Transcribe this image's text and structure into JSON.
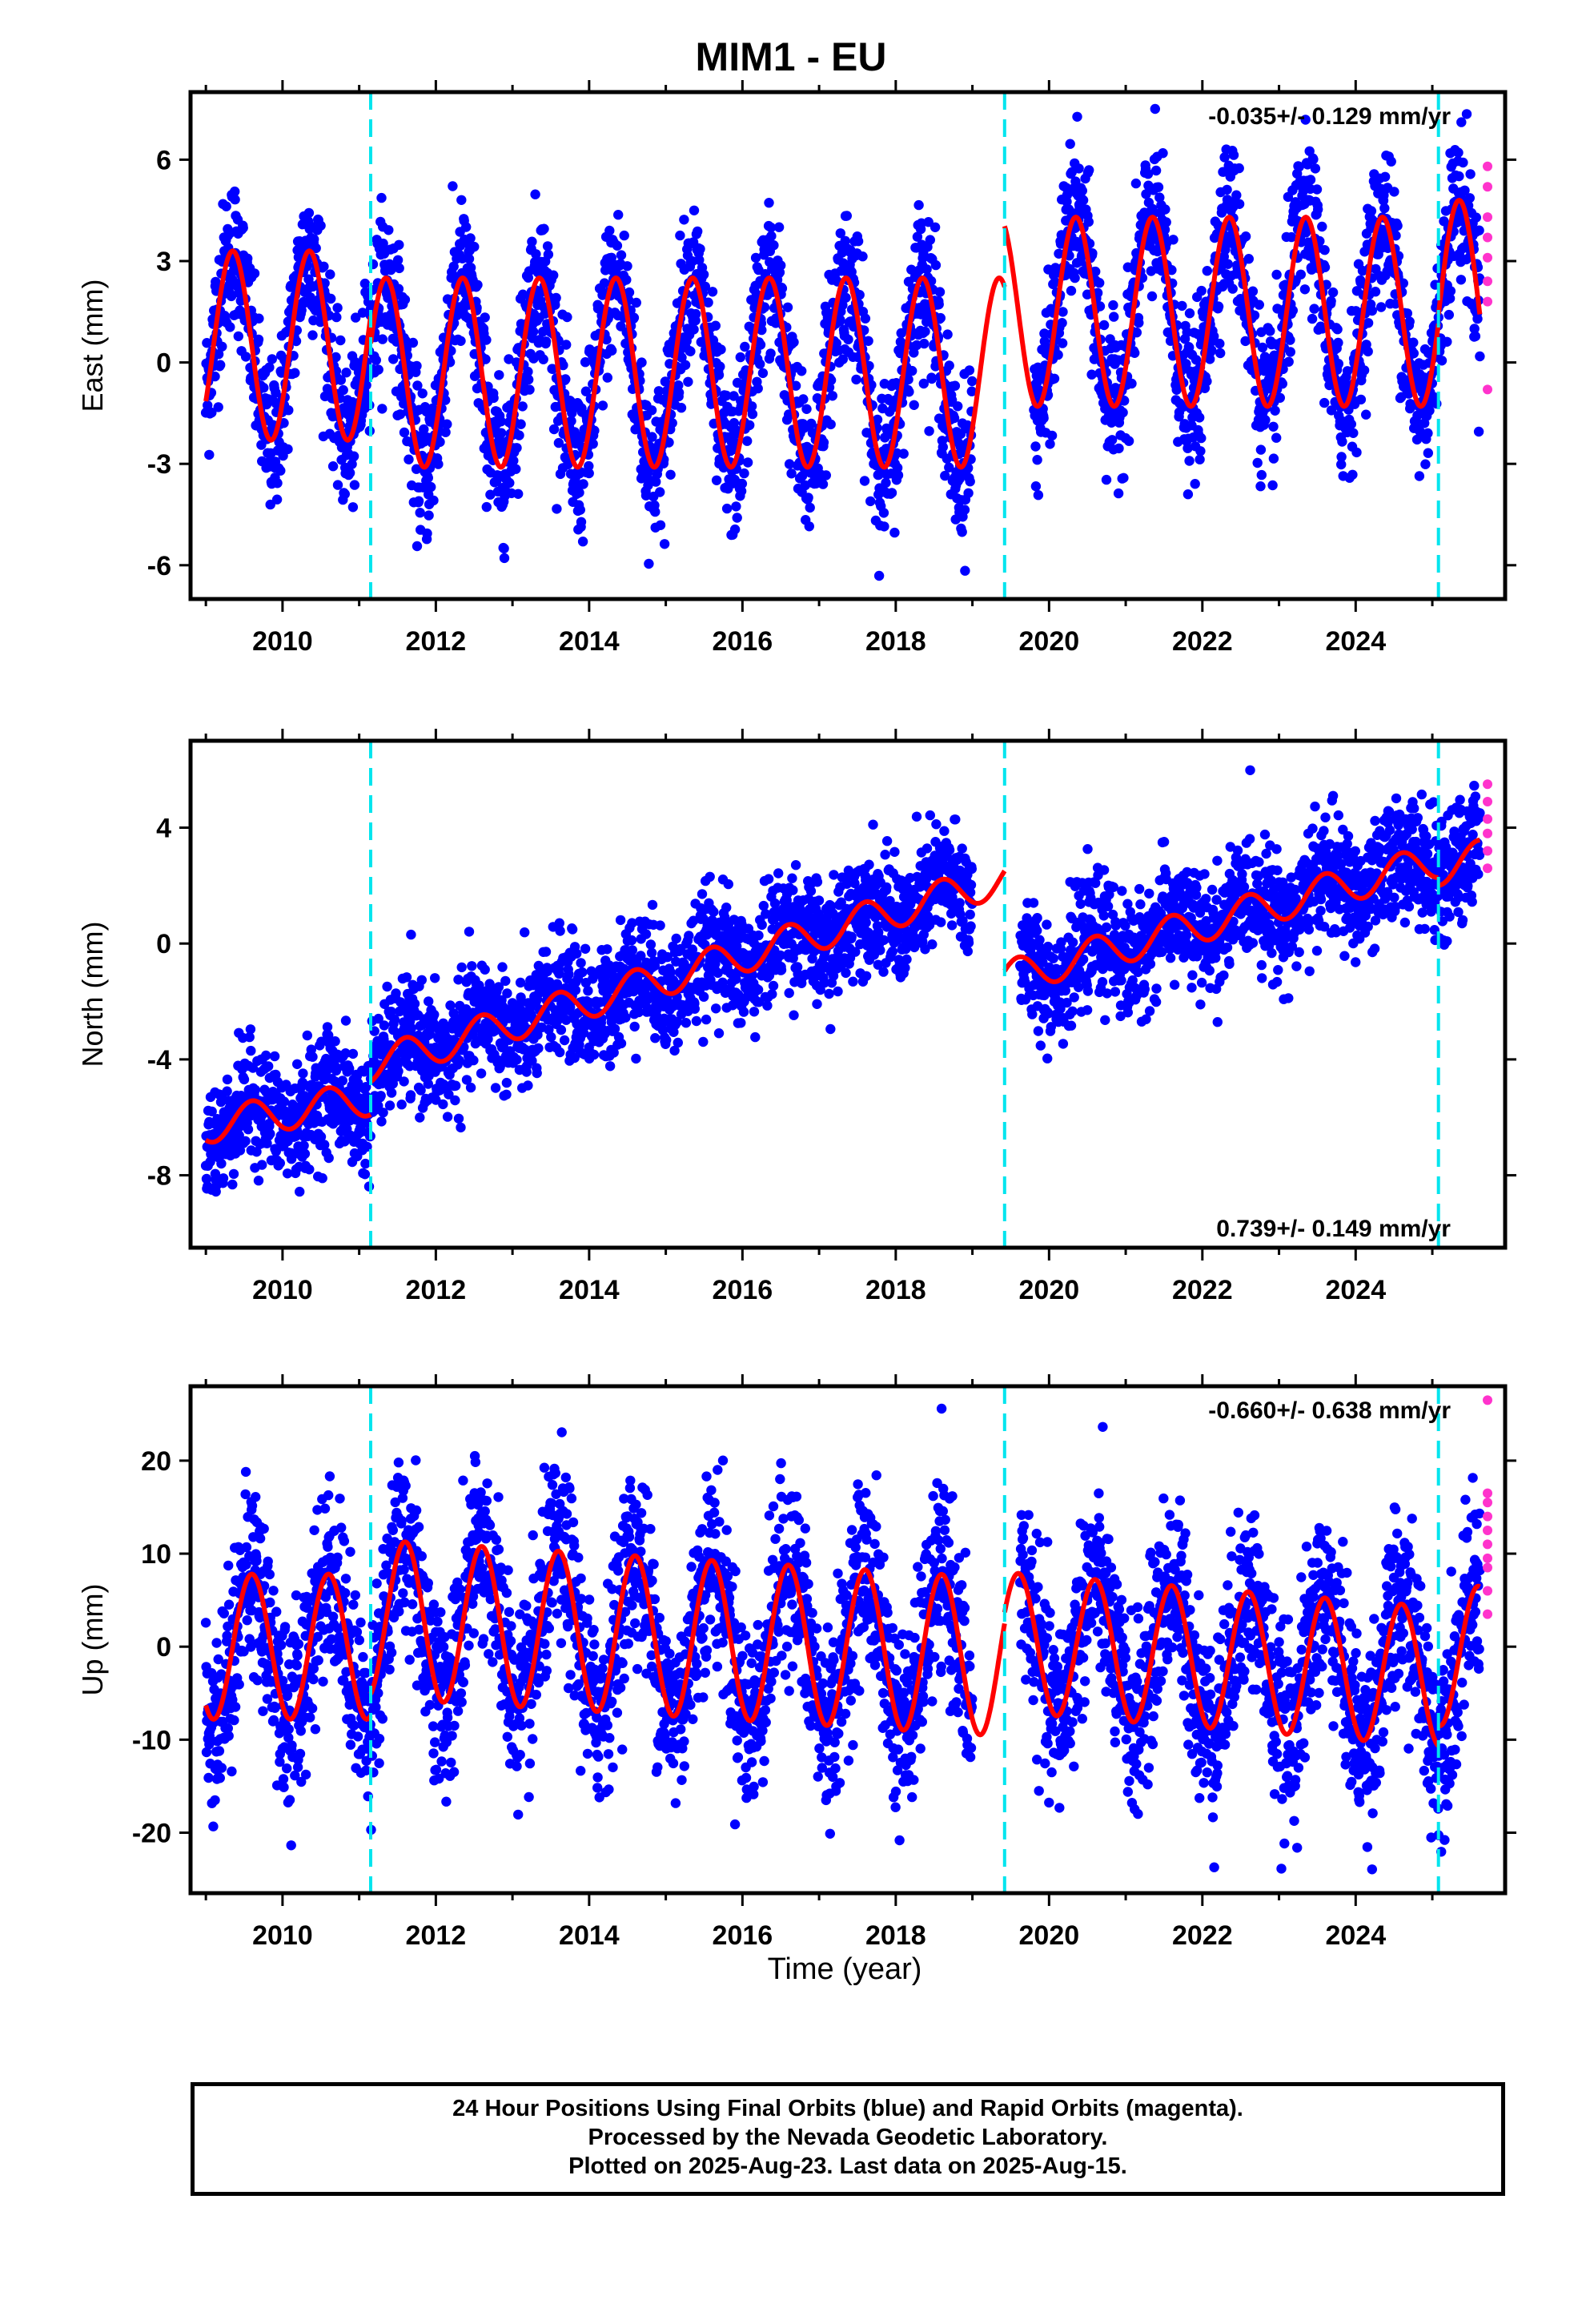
{
  "title": "MIM1 - EU",
  "xlabel": "Time (year)",
  "footer": {
    "line1": "24 Hour Positions Using Final Orbits (blue) and Rapid Orbits (magenta).",
    "line2": "Processed by the Nevada Geodetic Laboratory.",
    "line3": "Plotted on 2025-Aug-23. Last data on 2025-Aug-15."
  },
  "colors": {
    "final_orbits": "#0000ff",
    "rapid_orbits": "#ff33cc",
    "model_fit": "#ff0000",
    "offset_lines": "#00e5ee"
  },
  "chart_data": [
    {
      "type": "scatter",
      "component": "East",
      "ylabel": "East (mm)",
      "rate_label": "-0.035+/- 0.129 mm/yr",
      "rate_position": "top-right",
      "xlim": [
        2008.8,
        2025.95
      ],
      "ylim": [
        -7.0,
        8.0
      ],
      "yticks": [
        -6,
        -3,
        0,
        3,
        6
      ],
      "xticks": [
        2010,
        2012,
        2014,
        2016,
        2018,
        2020,
        2022,
        2024
      ],
      "offset_epochs": [
        2011.15,
        2019.42,
        2025.08
      ],
      "data_span": [
        2009.0,
        2025.62
      ],
      "scatter_sigma": 1.1,
      "rapid_points": [
        5.8,
        5.2,
        4.3,
        3.7,
        3.1,
        2.4,
        1.8,
        -0.8
      ],
      "model_fit": [
        {
          "from": 2009.0,
          "to": 2011.15,
          "mean": 0.5,
          "trend": 0.0,
          "amp": 2.8,
          "phase": 2009.35
        },
        {
          "from": 2011.15,
          "to": 2019.42,
          "mean": -0.3,
          "trend": 0.0,
          "amp": 2.8,
          "phase": 2009.35
        },
        {
          "from": 2019.42,
          "to": 2025.08,
          "mean": 1.5,
          "trend": 0.0,
          "amp": 2.8,
          "phase": 2009.35
        },
        {
          "from": 2025.08,
          "to": 2025.62,
          "mean": 1.8,
          "trend": 0.0,
          "amp": 3.0,
          "phase": 2009.35
        }
      ]
    },
    {
      "type": "scatter",
      "component": "North",
      "ylabel": "North (mm)",
      "rate_label": "0.739+/- 0.149 mm/yr",
      "rate_position": "bottom-right",
      "xlim": [
        2008.8,
        2025.95
      ],
      "ylim": [
        -10.5,
        7.0
      ],
      "yticks": [
        -8,
        -4,
        0,
        4
      ],
      "xticks": [
        2010,
        2012,
        2014,
        2016,
        2018,
        2020,
        2022,
        2024
      ],
      "offset_epochs": [
        2011.15,
        2019.42,
        2025.08
      ],
      "data_span": [
        2009.0,
        2025.62
      ],
      "scatter_sigma": 1.0,
      "rapid_points": [
        5.5,
        4.9,
        4.3,
        3.8,
        3.2,
        2.6
      ],
      "model_fit": [
        {
          "from": 2009.0,
          "to": 2011.15,
          "mean": -6.3,
          "trend": 0.45,
          "amp": 0.6,
          "phase": 2009.6
        },
        {
          "from": 2011.15,
          "to": 2019.42,
          "mean": -4.2,
          "trend": 0.78,
          "amp": 0.6,
          "phase": 2009.6
        },
        {
          "from": 2019.42,
          "to": 2025.08,
          "mean": -1.2,
          "trend": 0.72,
          "amp": 0.6,
          "phase": 2009.6
        },
        {
          "from": 2025.08,
          "to": 2025.62,
          "mean": 2.6,
          "trend": 0.7,
          "amp": 0.6,
          "phase": 2009.6
        }
      ]
    },
    {
      "type": "scatter",
      "component": "Up",
      "ylabel": "Up (mm)",
      "rate_label": "-0.660+/- 0.638 mm/yr",
      "rate_position": "top-right",
      "xlim": [
        2008.8,
        2025.95
      ],
      "ylim": [
        -26.5,
        28.0
      ],
      "yticks": [
        -20,
        -10,
        0,
        10,
        20
      ],
      "xticks": [
        2010,
        2012,
        2014,
        2016,
        2018,
        2020,
        2022,
        2024
      ],
      "offset_epochs": [
        2011.15,
        2019.42,
        2025.08
      ],
      "data_span": [
        2009.0,
        2025.62
      ],
      "scatter_sigma": 5.0,
      "rapid_points": [
        26.5,
        16.5,
        15.5,
        14.0,
        12.5,
        11.0,
        9.5,
        8.5,
        6.0,
        3.5
      ],
      "model_fit": [
        {
          "from": 2009.0,
          "to": 2011.15,
          "mean": 0.0,
          "trend": 0.0,
          "amp": 7.8,
          "phase": 2009.6
        },
        {
          "from": 2011.15,
          "to": 2019.42,
          "mean": 3.0,
          "trend": -0.5,
          "amp": 8.5,
          "phase": 2009.6
        },
        {
          "from": 2019.42,
          "to": 2025.08,
          "mean": 0.5,
          "trend": -0.66,
          "amp": 7.5,
          "phase": 2009.6
        },
        {
          "from": 2025.08,
          "to": 2025.62,
          "mean": -1.0,
          "trend": 0.0,
          "amp": 7.5,
          "phase": 2009.6
        }
      ]
    }
  ]
}
